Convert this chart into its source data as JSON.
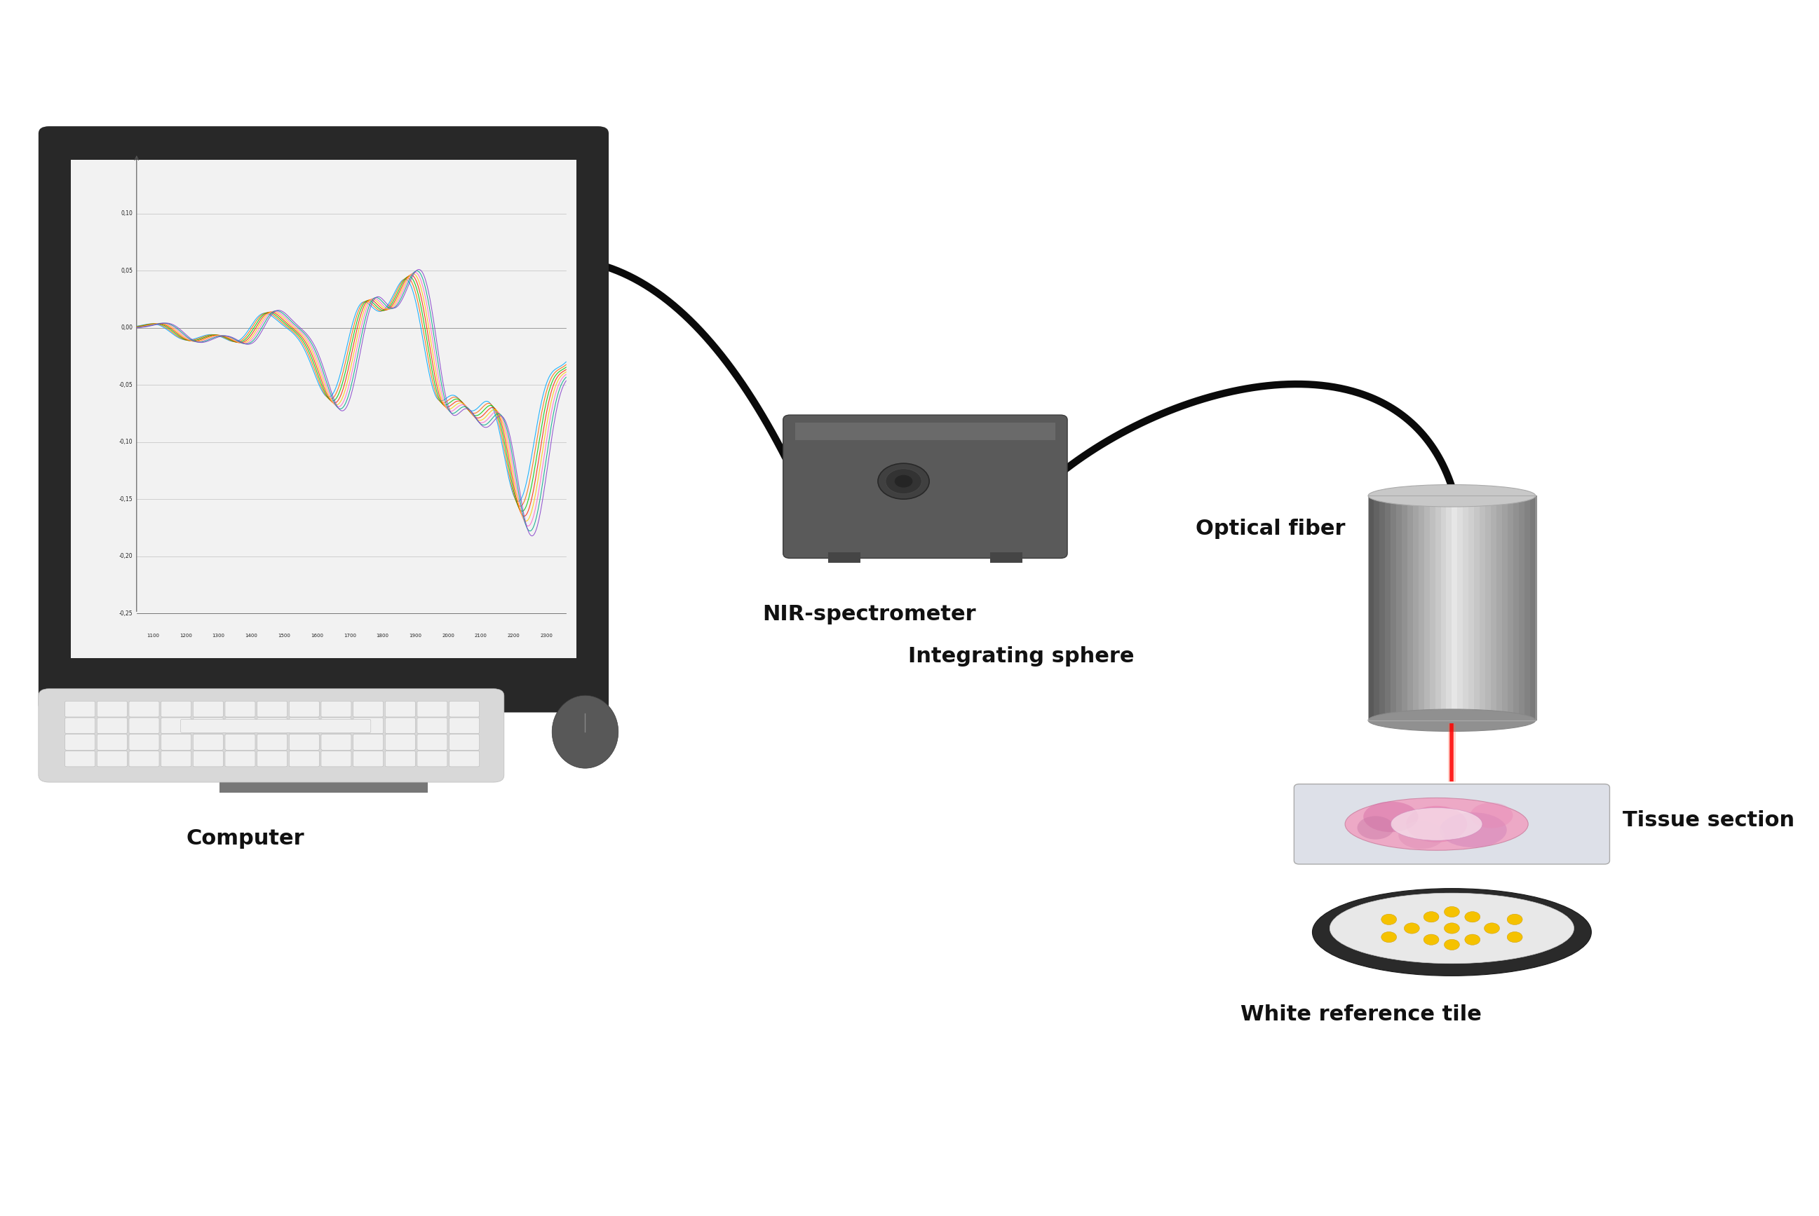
{
  "bg_color": "#ffffff",
  "fig_width": 25.94,
  "fig_height": 17.35,
  "labels": {
    "computer": "Computer",
    "nir": "NIR-spectrometer",
    "fiber": "Optical fiber",
    "sphere": "Integrating sphere",
    "tissue": "Tissue section",
    "reference": "White reference tile"
  },
  "label_fontsize": 22,
  "label_fontweight": "bold",
  "spectra_colors": [
    "#00aaff",
    "#ff6600",
    "#00cc00",
    "#ff2200",
    "#ffcc00",
    "#ff66cc",
    "#00aa88",
    "#8844cc"
  ],
  "ytick_vals": [
    -0.25,
    -0.2,
    -0.15,
    -0.1,
    -0.05,
    0,
    0.05,
    0.1
  ],
  "xtick_vals": [
    1100,
    1200,
    1300,
    1400,
    1500,
    1600,
    1700,
    1800,
    1900,
    2000,
    2100,
    2200,
    2300
  ],
  "ymin": -0.25,
  "ymax": 0.13,
  "xmin": 1050,
  "xmax": 2360
}
